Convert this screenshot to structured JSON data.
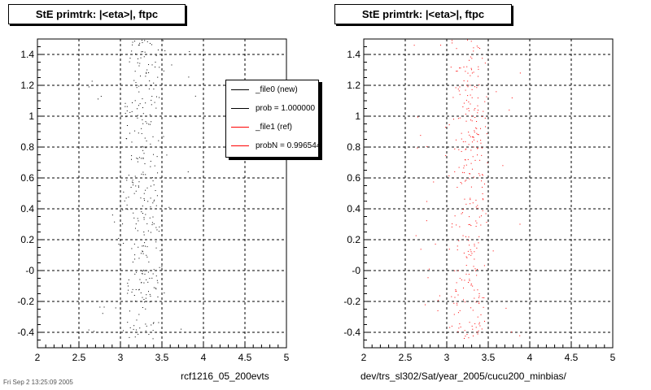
{
  "chart_data": [
    {
      "type": "scatter",
      "title": "StE primtrk: |<eta>|, ftpc",
      "xlabel": "rcf1216_05_200evts",
      "xlim": [
        2,
        5
      ],
      "ylim": [
        -0.5,
        1.5
      ],
      "x_ticks": [
        "2",
        "2.5",
        "3",
        "3.5",
        "4",
        "4.5",
        "5"
      ],
      "y_ticks": [
        "1.4",
        "1.2",
        "1",
        "0.8",
        "0.6",
        "0.4",
        "0.2",
        "-0",
        "-0.2",
        "-0.4"
      ],
      "grid": true,
      "marker_color": "#000000",
      "legend": [
        {
          "label": "_file0 (new)",
          "color": "#000000"
        },
        {
          "label": "prob = 1.000000",
          "color": "#000000"
        },
        {
          "label": "_file1 (ref)",
          "color": "#ff0000"
        },
        {
          "label": "probN = 0.996544",
          "color": "#ff0000"
        }
      ]
    },
    {
      "type": "scatter",
      "title": "StE primtrk: |<eta>|, ftpc",
      "xlabel": "dev/trs_sl302/Sat/year_2005/cucu200_minbias/",
      "xlim": [
        2,
        5
      ],
      "ylim": [
        -0.5,
        1.5
      ],
      "x_ticks": [
        "2",
        "2.5",
        "3",
        "3.5",
        "4",
        "4.5",
        "5"
      ],
      "y_ticks": [
        "1.4",
        "1.2",
        "1",
        "0.8",
        "0.6",
        "0.4",
        "0.2",
        "-0",
        "-0.2",
        "-0.4"
      ],
      "grid": true,
      "marker_color": "#ff0000"
    }
  ],
  "footer": "Fri Sep 2 13:25:09 2005"
}
